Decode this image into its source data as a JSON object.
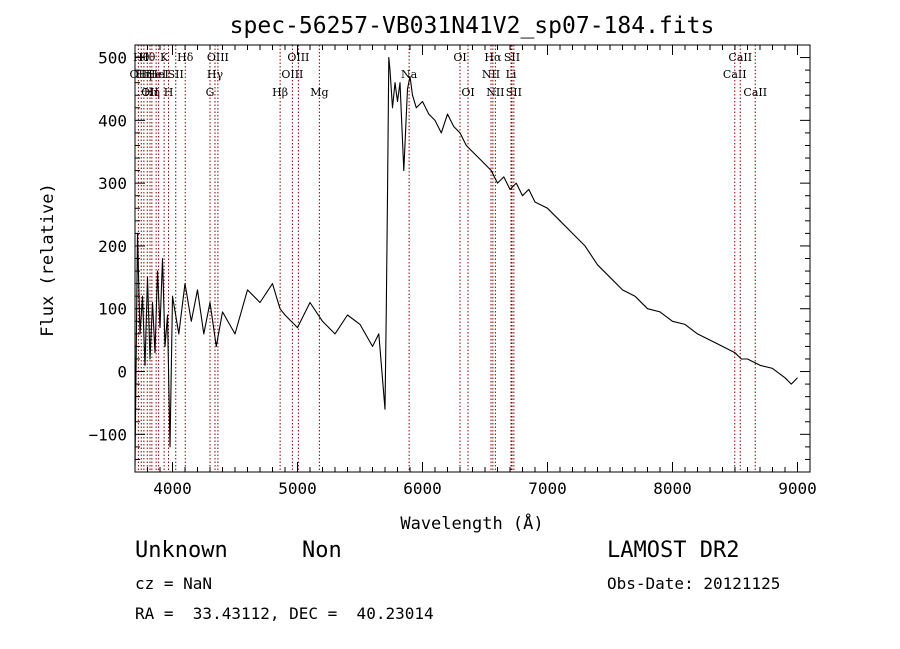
{
  "chart_data": {
    "type": "line",
    "title": "spec-56257-VB031N41V2_sp07-184.fits",
    "xlabel": "Wavelength (Å)",
    "ylabel": "Flux (relative)",
    "xlim": [
      3700,
      9100
    ],
    "ylim": [
      -160,
      520
    ],
    "x_ticks": [
      4000,
      5000,
      6000,
      7000,
      8000,
      9000
    ],
    "y_ticks": [
      -100,
      0,
      100,
      200,
      300,
      400,
      500
    ],
    "grid": false,
    "line_color": "#000000",
    "marker_color": "#8b0000",
    "series": [
      {
        "x": [
          3700,
          3720,
          3740,
          3760,
          3780,
          3800,
          3820,
          3840,
          3860,
          3880,
          3900,
          3920,
          3940,
          3960,
          3980,
          4000,
          4050,
          4100,
          4150,
          4200,
          4250,
          4300,
          4350,
          4400,
          4500,
          4600,
          4700,
          4800,
          4860,
          4900,
          5000,
          5100,
          5200,
          5300,
          5400,
          5500,
          5600,
          5650,
          5700,
          5710,
          5720,
          5730,
          5740,
          5760,
          5780,
          5800,
          5820,
          5850,
          5880,
          5900,
          5920,
          5950,
          6000,
          6050,
          6100,
          6150,
          6200,
          6250,
          6300,
          6350,
          6400,
          6450,
          6500,
          6550,
          6600,
          6650,
          6700,
          6750,
          6800,
          6850,
          6900,
          7000,
          7100,
          7200,
          7300,
          7400,
          7500,
          7600,
          7700,
          7800,
          7900,
          8000,
          8100,
          8200,
          8300,
          8400,
          8500,
          8550,
          8600,
          8700,
          8800,
          8900,
          8950,
          9000
        ],
        "y": [
          -150,
          220,
          60,
          120,
          10,
          150,
          20,
          110,
          30,
          160,
          70,
          180,
          40,
          90,
          -120,
          120,
          60,
          140,
          80,
          130,
          60,
          110,
          40,
          95,
          60,
          130,
          110,
          140,
          100,
          90,
          70,
          110,
          80,
          60,
          90,
          75,
          40,
          60,
          -60,
          100,
          280,
          500,
          480,
          420,
          460,
          430,
          460,
          320,
          450,
          470,
          440,
          420,
          430,
          410,
          400,
          380,
          410,
          390,
          380,
          360,
          350,
          340,
          330,
          320,
          300,
          310,
          290,
          300,
          280,
          290,
          270,
          260,
          240,
          220,
          200,
          170,
          150,
          130,
          120,
          100,
          95,
          80,
          75,
          60,
          50,
          40,
          30,
          20,
          20,
          10,
          5,
          -10,
          -20,
          -10
        ]
      }
    ],
    "line_markers": [
      {
        "w": 3727,
        "label": "OII",
        "row": 2
      },
      {
        "w": 3750,
        "label": "Hθ",
        "row": 1
      },
      {
        "w": 3771,
        "label": "Hη",
        "row": 2
      },
      {
        "w": 3798,
        "label": "Hθ",
        "row": 1
      },
      {
        "w": 3820,
        "label": "OII",
        "row": 3
      },
      {
        "w": 3835,
        "label": "Hη",
        "row": 3
      },
      {
        "w": 3869,
        "label": "HeI",
        "row": 2
      },
      {
        "w": 3889,
        "label": "HeI",
        "row": 2
      },
      {
        "w": 3933,
        "label": "K",
        "row": 1
      },
      {
        "w": 3968,
        "label": "H",
        "row": 3
      },
      {
        "w": 4026,
        "label": "SII",
        "row": 2
      },
      {
        "w": 4102,
        "label": "Hδ",
        "row": 1
      },
      {
        "w": 4300,
        "label": "G",
        "row": 3
      },
      {
        "w": 4340,
        "label": "Hγ",
        "row": 2
      },
      {
        "w": 4363,
        "label": "OIII",
        "row": 1
      },
      {
        "w": 4861,
        "label": "Hβ",
        "row": 3
      },
      {
        "w": 4959,
        "label": "OIII",
        "row": 2
      },
      {
        "w": 5007,
        "label": "OIII",
        "row": 1
      },
      {
        "w": 5175,
        "label": "Mg",
        "row": 3
      },
      {
        "w": 5893,
        "label": "Na",
        "row": 2
      },
      {
        "w": 6300,
        "label": "OI",
        "row": 1
      },
      {
        "w": 6364,
        "label": "OI",
        "row": 3
      },
      {
        "w": 6548,
        "label": "NII",
        "row": 2
      },
      {
        "w": 6563,
        "label": "Hα",
        "row": 1
      },
      {
        "w": 6583,
        "label": "NII",
        "row": 3
      },
      {
        "w": 6708,
        "label": "Li",
        "row": 2
      },
      {
        "w": 6716,
        "label": "SII",
        "row": 1
      },
      {
        "w": 6731,
        "label": "SII",
        "row": 3
      },
      {
        "w": 8498,
        "label": "CaII",
        "row": 2
      },
      {
        "w": 8542,
        "label": "CaII",
        "row": 1
      },
      {
        "w": 8662,
        "label": "CaII",
        "row": 3
      }
    ]
  },
  "info": {
    "class": "Unknown",
    "subclass": "Non",
    "survey": "LAMOST DR2",
    "cz": "cz = NaN",
    "obs_date": "Obs-Date: 20121125",
    "coords": "RA =  33.43112, DEC =  40.23014"
  }
}
